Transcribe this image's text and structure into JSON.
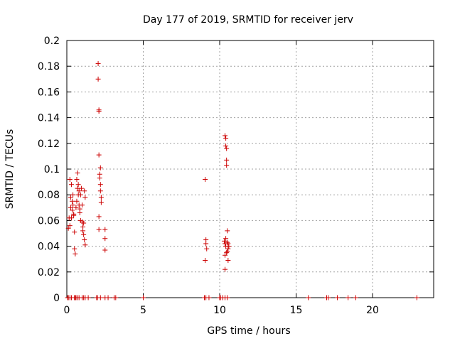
{
  "chart_data": {
    "type": "scatter",
    "title": "Day 177 of 2019, SRMTID for receiver jerv",
    "xlabel": "GPS time / hours",
    "ylabel": "SRMTID / TECUs",
    "xlim": [
      0,
      24
    ],
    "ylim": [
      0,
      0.2
    ],
    "x_ticks": [
      0,
      5,
      10,
      15,
      20
    ],
    "y_ticks": [
      0,
      0.02,
      0.04,
      0.06,
      0.08,
      0.1,
      0.12,
      0.14,
      0.16,
      0.18,
      0.2
    ],
    "grid": true,
    "marker": "+",
    "marker_color": "#cc0000",
    "series": [
      {
        "points": [
          [
            0.1,
            0.054
          ],
          [
            0.15,
            0.062
          ],
          [
            0.2,
            0.092
          ],
          [
            0.2,
            0.056
          ],
          [
            0.25,
            0.07
          ],
          [
            0.25,
            0.078
          ],
          [
            0.3,
            0.088
          ],
          [
            0.3,
            0.062
          ],
          [
            0.35,
            0.075
          ],
          [
            0.35,
            0.068
          ],
          [
            0.4,
            0.08
          ],
          [
            0.4,
            0.072
          ],
          [
            0.45,
            0.065
          ],
          [
            0.45,
            0.064
          ],
          [
            0.5,
            0.051
          ],
          [
            0.5,
            0.038
          ],
          [
            0.55,
            0.034
          ],
          [
            0.6,
            0.07
          ],
          [
            0.65,
            0.092
          ],
          [
            0.65,
            0.075
          ],
          [
            0.7,
            0.097
          ],
          [
            0.7,
            0.085
          ],
          [
            0.75,
            0.088
          ],
          [
            0.75,
            0.08
          ],
          [
            0.8,
            0.083
          ],
          [
            0.8,
            0.072
          ],
          [
            0.85,
            0.069
          ],
          [
            0.85,
            0.066
          ],
          [
            0.9,
            0.08
          ],
          [
            0.9,
            0.06
          ],
          [
            0.95,
            0.085
          ],
          [
            1.0,
            0.072
          ],
          [
            1.0,
            0.059
          ],
          [
            1.05,
            0.055
          ],
          [
            1.05,
            0.052
          ],
          [
            1.1,
            0.049
          ],
          [
            1.1,
            0.058
          ],
          [
            1.15,
            0.083
          ],
          [
            1.15,
            0.045
          ],
          [
            1.2,
            0.041
          ],
          [
            1.2,
            0.078
          ],
          [
            2.05,
            0.182
          ],
          [
            2.05,
            0.17
          ],
          [
            2.1,
            0.146
          ],
          [
            2.1,
            0.145
          ],
          [
            2.1,
            0.111
          ],
          [
            2.15,
            0.096
          ],
          [
            2.15,
            0.093
          ],
          [
            2.2,
            0.101
          ],
          [
            2.2,
            0.088
          ],
          [
            2.2,
            0.083
          ],
          [
            2.25,
            0.078
          ],
          [
            2.25,
            0.074
          ],
          [
            2.1,
            0.063
          ],
          [
            2.1,
            0.053
          ],
          [
            2.5,
            0.053
          ],
          [
            2.5,
            0.046
          ],
          [
            2.5,
            0.037
          ],
          [
            9.05,
            0.092
          ],
          [
            9.1,
            0.045
          ],
          [
            9.1,
            0.042
          ],
          [
            9.15,
            0.038
          ],
          [
            9.05,
            0.029
          ],
          [
            10.35,
            0.126
          ],
          [
            10.4,
            0.124
          ],
          [
            10.4,
            0.118
          ],
          [
            10.45,
            0.116
          ],
          [
            10.45,
            0.107
          ],
          [
            10.45,
            0.103
          ],
          [
            10.5,
            0.052
          ],
          [
            10.4,
            0.046
          ],
          [
            10.3,
            0.044
          ],
          [
            10.35,
            0.042
          ],
          [
            10.4,
            0.04
          ],
          [
            10.5,
            0.043
          ],
          [
            10.55,
            0.042
          ],
          [
            10.6,
            0.04
          ],
          [
            10.55,
            0.038
          ],
          [
            10.5,
            0.036
          ],
          [
            10.45,
            0.035
          ],
          [
            10.35,
            0.033
          ],
          [
            10.55,
            0.029
          ],
          [
            10.35,
            0.022
          ]
        ]
      },
      {
        "points": [
          [
            0.05,
            0
          ],
          [
            0.1,
            0
          ],
          [
            0.2,
            0
          ],
          [
            0.3,
            0
          ],
          [
            0.5,
            0
          ],
          [
            0.55,
            0
          ],
          [
            0.6,
            0
          ],
          [
            0.7,
            0
          ],
          [
            0.8,
            0
          ],
          [
            1.0,
            0
          ],
          [
            1.1,
            0
          ],
          [
            1.2,
            0
          ],
          [
            1.4,
            0
          ],
          [
            1.95,
            0
          ],
          [
            2.0,
            0
          ],
          [
            2.2,
            0
          ],
          [
            2.5,
            0
          ],
          [
            2.7,
            0
          ],
          [
            3.1,
            0
          ],
          [
            3.2,
            0
          ],
          [
            5.0,
            0
          ],
          [
            9.0,
            0
          ],
          [
            9.1,
            0
          ],
          [
            9.3,
            0
          ],
          [
            10.0,
            0
          ],
          [
            10.05,
            0
          ],
          [
            10.2,
            0
          ],
          [
            10.35,
            0
          ],
          [
            10.5,
            0
          ],
          [
            15.8,
            0
          ],
          [
            17.0,
            0
          ],
          [
            17.1,
            0
          ],
          [
            17.7,
            0
          ],
          [
            18.4,
            0
          ],
          [
            18.9,
            0
          ],
          [
            22.9,
            0
          ]
        ]
      }
    ]
  }
}
